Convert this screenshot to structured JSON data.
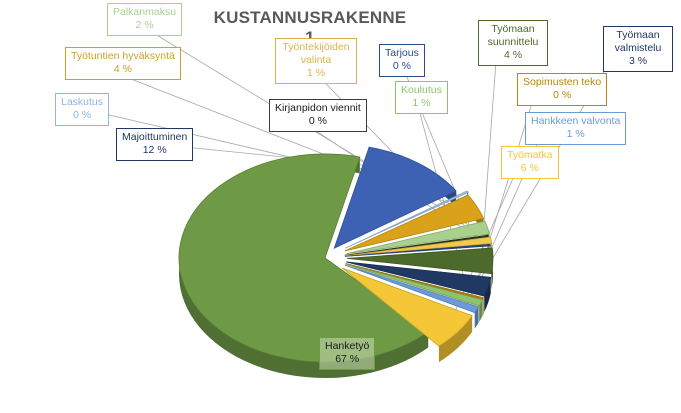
{
  "chart_data": {
    "type": "pie",
    "title": "KUSTANNUSRAKENNE 1",
    "slices": [
      {
        "label": "Hanketyö",
        "value": 67,
        "display": "67 %",
        "color": "#6f9a45"
      },
      {
        "label": "Majoittuminen",
        "value": 12,
        "display": "12 %",
        "color": "#3d62b4"
      },
      {
        "label": "Laskutus",
        "value": 0,
        "display": "0 %",
        "color": "#9ec3e8"
      },
      {
        "label": "Työtuntien hyväksyntä",
        "value": 4,
        "display": "4 %",
        "color": "#d9a21a"
      },
      {
        "label": "Palkanmaksu",
        "value": 2,
        "display": "2 %",
        "color": "#a9d18e"
      },
      {
        "label": "Kirjanpidon viennit",
        "value": 0,
        "display": "0 %",
        "color": "#2f3a1e"
      },
      {
        "label": "Työntekijöiden valinta",
        "value": 1,
        "display": "1 %",
        "color": "#f2c94c"
      },
      {
        "label": "Tarjous",
        "value": 0,
        "display": "0 %",
        "color": "#2a4a8a"
      },
      {
        "label": "Työmaan suunnittelu",
        "value": 4,
        "display": "4 %",
        "color": "#4c6a2b"
      },
      {
        "label": "Työmaan valmistelu",
        "value": 3,
        "display": "3 %",
        "color": "#1f3864"
      },
      {
        "label": "Sopimusten teko",
        "value": 0,
        "display": "0 %",
        "color": "#b8860b"
      },
      {
        "label": "Koulutus",
        "value": 1,
        "display": "1 %",
        "color": "#8fc46a"
      },
      {
        "label": "Hankkeen valvonta",
        "value": 1,
        "display": "1 %",
        "color": "#6a9bd8"
      },
      {
        "label": "Työmatka",
        "value": 6,
        "display": "6 %",
        "color": "#f5c636"
      }
    ]
  }
}
